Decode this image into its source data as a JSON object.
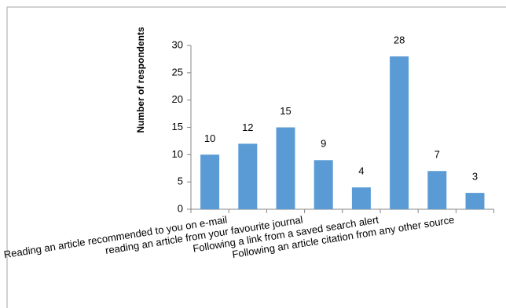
{
  "chart_data": {
    "type": "bar",
    "y_label": "Number of respondents",
    "categories": [
      "Reading an article recommended to you on e-mail",
      null,
      "reading an article from your favourite journal",
      null,
      "Following a link from a saved search alert",
      null,
      "Following an article citation from any other source",
      null
    ],
    "values": [
      10,
      12,
      15,
      9,
      4,
      28,
      7,
      3
    ],
    "color": "#5b9bd5",
    "ylim": [
      0,
      30
    ],
    "yticks": [
      0,
      5,
      10,
      15,
      20,
      25,
      30
    ],
    "grid": false
  }
}
